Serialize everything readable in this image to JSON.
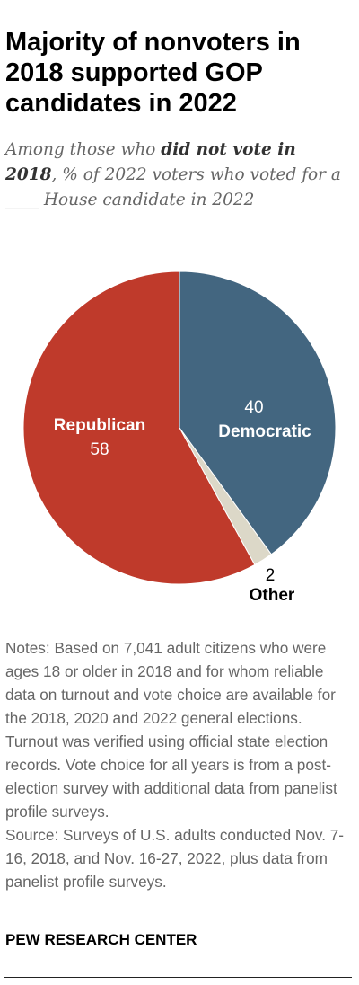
{
  "header": {
    "title": "Majority of nonvoters in 2018 supported GOP candidates in 2022",
    "subtitle_pre": "Among those who ",
    "subtitle_bold": "did not vote in 2018",
    "subtitle_post": ", % of 2022 voters who voted for a ____ House candidate in 2022"
  },
  "chart_data": {
    "type": "pie",
    "title": "",
    "slices": [
      {
        "name": "Democratic",
        "value": 40,
        "color": "#436680"
      },
      {
        "name": "Other",
        "value": 2,
        "color": "#dcd8c8"
      },
      {
        "name": "Republican",
        "value": 58,
        "color": "#bf3a2b"
      }
    ]
  },
  "footer": {
    "notes": "Notes: Based on 7,041 adult citizens who were ages 18 or older in 2018 and for whom reliable data on turnout and vote choice are available for the 2018, 2020 and 2022 general elections. Turnout was verified using official state election records. Vote choice for all years is from a post-election survey with additional data from panelist profile surveys.",
    "source": "Source: Surveys of U.S. adults conducted Nov. 7-16, 2018, and Nov. 16-27, 2022, plus data from panelist profile surveys.",
    "brand": "PEW RESEARCH CENTER"
  }
}
